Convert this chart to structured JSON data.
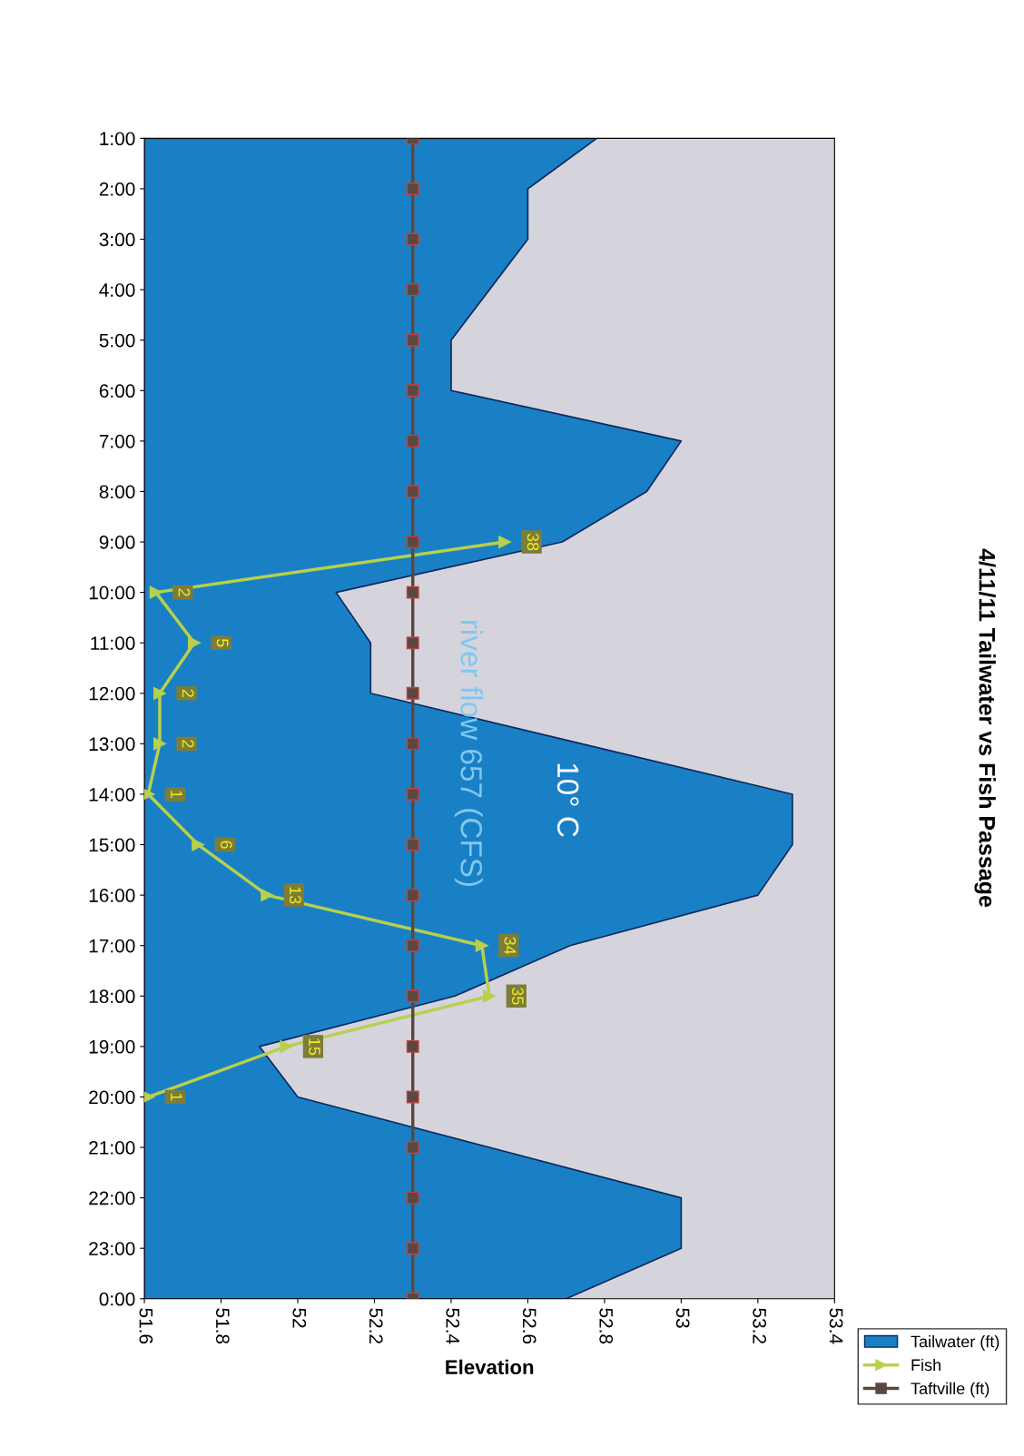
{
  "chart_data": {
    "type": "area",
    "orientation": "horizontal",
    "title": "4/11/11 Tailwater vs Fish Passage",
    "xlabel": "Elevation",
    "categories": [
      "1:00",
      "2:00",
      "3:00",
      "4:00",
      "5:00",
      "6:00",
      "7:00",
      "8:00",
      "9:00",
      "10:00",
      "11:00",
      "12:00",
      "13:00",
      "14:00",
      "15:00",
      "16:00",
      "17:00",
      "18:00",
      "19:00",
      "20:00",
      "21:00",
      "22:00",
      "23:00",
      "0:00"
    ],
    "series": [
      {
        "name": "Tailwater (ft)",
        "color": "#1a80c6",
        "values": [
          52.78,
          52.6,
          52.6,
          52.5,
          52.4,
          52.4,
          53.0,
          52.91,
          52.69,
          52.1,
          52.19,
          52.19,
          52.74,
          53.29,
          53.29,
          53.2,
          52.71,
          52.41,
          51.9,
          52.0,
          52.5,
          53.0,
          53.0,
          52.7
        ]
      },
      {
        "name": "Fish",
        "type": "line",
        "color": "#b8d04c",
        "marker": "triangle",
        "values": [
          null,
          null,
          null,
          null,
          null,
          null,
          null,
          null,
          52.54,
          51.63,
          51.73,
          51.64,
          51.64,
          51.61,
          51.74,
          51.92,
          52.48,
          52.5,
          51.97,
          51.61,
          null,
          null,
          null,
          null
        ]
      },
      {
        "name": "Taftville (ft)",
        "type": "line",
        "color": "#5a4840",
        "marker": "square",
        "values": [
          52.3,
          52.3,
          52.3,
          52.3,
          52.3,
          52.3,
          52.3,
          52.3,
          52.3,
          52.3,
          52.3,
          52.3,
          52.3,
          52.3,
          52.3,
          52.3,
          52.3,
          52.3,
          52.3,
          52.3,
          52.3,
          52.3,
          52.3,
          52.3
        ]
      }
    ],
    "xlim": [
      51.6,
      53.4
    ],
    "xticks": [
      51.6,
      51.8,
      52,
      52.2,
      52.4,
      52.6,
      52.8,
      53,
      53.2,
      53.4
    ],
    "annotations": [
      "river flow 657 (CFS)",
      "10° C",
      {
        "text": "38",
        "x": 52.54,
        "y": "9:00"
      },
      {
        "text": "2",
        "x": 51.63,
        "y": "10:00"
      },
      {
        "text": "5",
        "x": 51.73,
        "y": "11:00"
      },
      {
        "text": "2",
        "x": 51.64,
        "y": "12:00"
      },
      {
        "text": "2",
        "x": 51.64,
        "y": "13:00"
      },
      {
        "text": "1",
        "x": 51.61,
        "y": "14:00"
      },
      {
        "text": "6",
        "x": 51.74,
        "y": "15:00"
      },
      {
        "text": "13",
        "x": 51.92,
        "y": "16:00"
      },
      {
        "text": "34",
        "x": 52.48,
        "y": "17:00"
      },
      {
        "text": "35",
        "x": 52.5,
        "y": "18:00"
      },
      {
        "text": "15",
        "x": 51.97,
        "y": "19:00"
      },
      {
        "text": "1",
        "x": 51.61,
        "y": "20:00"
      }
    ],
    "grid": false,
    "legend": "bottom right"
  }
}
